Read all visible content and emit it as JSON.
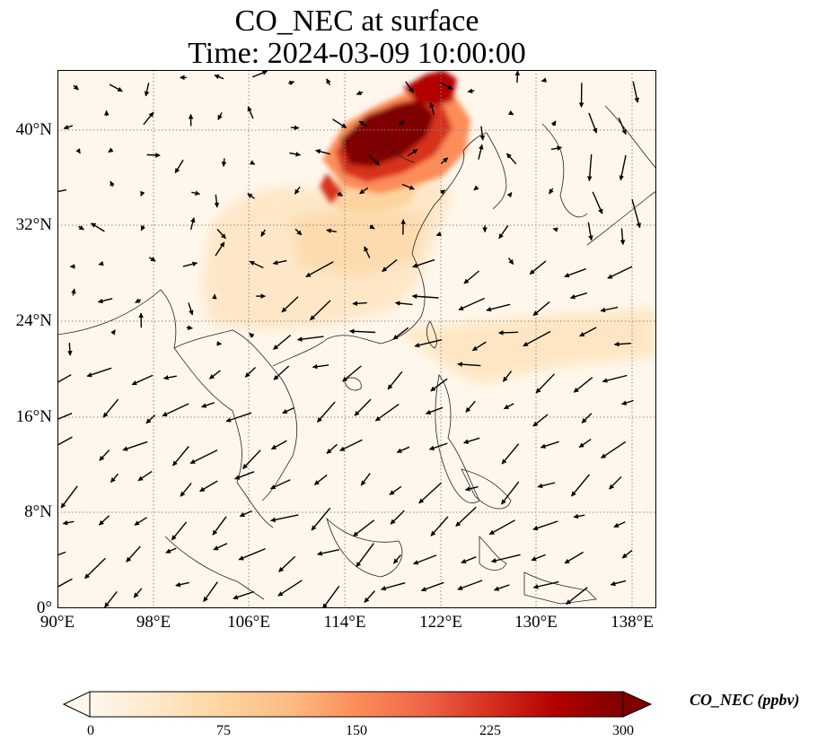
{
  "title": {
    "line1": "CO_NEC at surface",
    "line2": "Time: 2024-03-09 10:00:00"
  },
  "map": {
    "extent": {
      "lon_min": 90,
      "lon_max": 140,
      "lat_min": 0,
      "lat_max": 45
    },
    "lat_ticks": [
      "40°N",
      "32°N",
      "24°N",
      "16°N",
      "8°N",
      "0°"
    ],
    "lon_ticks": [
      "90°E",
      "98°E",
      "106°E",
      "114°E",
      "122°E",
      "130°E",
      "138°E"
    ],
    "gridlines": "dotted grey",
    "coastlines": true,
    "field": "CO concentration (shaded)",
    "wind_vectors": true,
    "high_region": "North China Plain (~36–43°N, 113–121°E)"
  },
  "colorbar": {
    "label": "CO_NEC (ppbv)",
    "ticks": [
      "0",
      "75",
      "150",
      "225",
      "300"
    ],
    "min": 0,
    "max": 300,
    "colormap": "OrRd",
    "colors": [
      "#fff7ec",
      "#fee8c8",
      "#fdd49e",
      "#fdbb84",
      "#fc8d59",
      "#ef6548",
      "#d7301f",
      "#b30000",
      "#7f0000"
    ],
    "extend": "both"
  }
}
